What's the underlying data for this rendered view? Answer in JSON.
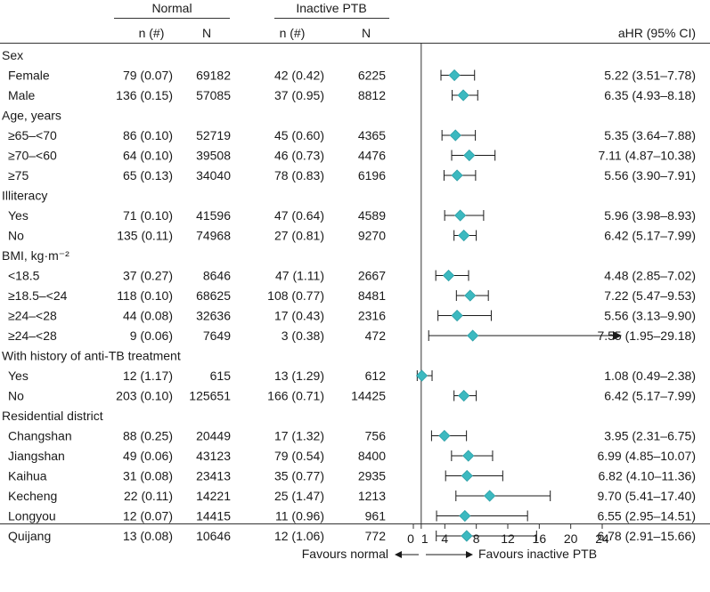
{
  "chart_data": {
    "type": "forest",
    "column_headers": {
      "group_normal": "Normal",
      "group_ptb": "Inactive PTB",
      "n_label": "n (#)",
      "N_label": "N",
      "estimate_label": "aHR (95% CI)"
    },
    "x_axis": {
      "ticks": [
        0,
        1,
        4,
        8,
        12,
        16,
        20,
        24
      ],
      "range": [
        0,
        24
      ],
      "reference_line": 1,
      "left_label": "Favours normal",
      "right_label": "Favours inactive PTB"
    },
    "groups": [
      {
        "title": "Sex",
        "rows": [
          {
            "label": "Female",
            "normal_n": "79 (0.07)",
            "normal_N": "69182",
            "ptb_n": "42 (0.42)",
            "ptb_N": "6225",
            "ahr": 5.22,
            "lo": 3.51,
            "hi": 7.78,
            "ci_text": "5.22 (3.51–7.78)"
          },
          {
            "label": "Male",
            "normal_n": "136 (0.15)",
            "normal_N": "57085",
            "ptb_n": "37 (0.95)",
            "ptb_N": "8812",
            "ahr": 6.35,
            "lo": 4.93,
            "hi": 8.18,
            "ci_text": "6.35 (4.93–8.18)"
          }
        ]
      },
      {
        "title": "Age, years",
        "rows": [
          {
            "label": "≥65–<70",
            "normal_n": "86 (0.10)",
            "normal_N": "52719",
            "ptb_n": "45 (0.60)",
            "ptb_N": "4365",
            "ahr": 5.35,
            "lo": 3.64,
            "hi": 7.88,
            "ci_text": "5.35 (3.64–7.88)"
          },
          {
            "label": "≥70–<60",
            "normal_n": "64 (0.10)",
            "normal_N": "39508",
            "ptb_n": "46 (0.73)",
            "ptb_N": "4476",
            "ahr": 7.11,
            "lo": 4.87,
            "hi": 10.38,
            "ci_text": "7.11 (4.87–10.38)"
          },
          {
            "label": "≥75",
            "normal_n": "65 (0.13)",
            "normal_N": "34040",
            "ptb_n": "78 (0.83)",
            "ptb_N": "6196",
            "ahr": 5.56,
            "lo": 3.9,
            "hi": 7.91,
            "ci_text": "5.56 (3.90–7.91)"
          }
        ]
      },
      {
        "title": "Illiteracy",
        "rows": [
          {
            "label": "Yes",
            "normal_n": "71 (0.10)",
            "normal_N": "41596",
            "ptb_n": "47 (0.64)",
            "ptb_N": "4589",
            "ahr": 5.96,
            "lo": 3.98,
            "hi": 8.93,
            "ci_text": "5.96 (3.98–8.93)"
          },
          {
            "label": "No",
            "normal_n": "135 (0.11)",
            "normal_N": "74968",
            "ptb_n": "27 (0.81)",
            "ptb_N": "9270",
            "ahr": 6.42,
            "lo": 5.17,
            "hi": 7.99,
            "ci_text": "6.42 (5.17–7.99)"
          }
        ]
      },
      {
        "title": "BMI, kg·m⁻²",
        "rows": [
          {
            "label": "<18.5",
            "normal_n": "37 (0.27)",
            "normal_N": "8646",
            "ptb_n": "47 (1.11)",
            "ptb_N": "2667",
            "ahr": 4.48,
            "lo": 2.85,
            "hi": 7.02,
            "ci_text": "4.48 (2.85–7.02)"
          },
          {
            "label": "≥18.5–<24",
            "normal_n": "118 (0.10)",
            "normal_N": "68625",
            "ptb_n": "108 (0.77)",
            "ptb_N": "8481",
            "ahr": 7.22,
            "lo": 5.47,
            "hi": 9.53,
            "ci_text": "7.22 (5.47–9.53)"
          },
          {
            "label": "≥24–<28",
            "normal_n": "44 (0.08)",
            "normal_N": "32636",
            "ptb_n": "17 (0.43)",
            "ptb_N": "2316",
            "ahr": 5.56,
            "lo": 3.13,
            "hi": 9.9,
            "ci_text": "5.56 (3.13–9.90)"
          },
          {
            "label": "≥24–<28",
            "normal_n": "9 (0.06)",
            "normal_N": "7649",
            "ptb_n": "3 (0.38)",
            "ptb_N": "472",
            "ahr": 7.55,
            "lo": 1.95,
            "hi": 29.18,
            "ci_text": "7.55 (1.95–29.18)",
            "arrow": true
          }
        ]
      },
      {
        "title": "With history of anti-TB treatment",
        "rows": [
          {
            "label": "Yes",
            "normal_n": "12 (1.17)",
            "normal_N": "615",
            "ptb_n": "13 (1.29)",
            "ptb_N": "612",
            "ahr": 1.08,
            "lo": 0.49,
            "hi": 2.38,
            "ci_text": "1.08 (0.49–2.38)"
          },
          {
            "label": "No",
            "normal_n": "203 (0.10)",
            "normal_N": "125651",
            "ptb_n": "166 (0.71)",
            "ptb_N": "14425",
            "ahr": 6.42,
            "lo": 5.17,
            "hi": 7.99,
            "ci_text": "6.42 (5.17–7.99)"
          }
        ]
      },
      {
        "title": "Residential district",
        "rows": [
          {
            "label": "Changshan",
            "normal_n": "88 (0.25)",
            "normal_N": "20449",
            "ptb_n": "17 (1.32)",
            "ptb_N": "756",
            "ahr": 3.95,
            "lo": 2.31,
            "hi": 6.75,
            "ci_text": "3.95 (2.31–6.75)"
          },
          {
            "label": "Jiangshan",
            "normal_n": "49 (0.06)",
            "normal_N": "43123",
            "ptb_n": "79 (0.54)",
            "ptb_N": "8400",
            "ahr": 6.99,
            "lo": 4.85,
            "hi": 10.07,
            "ci_text": "6.99 (4.85–10.07)"
          },
          {
            "label": "Kaihua",
            "normal_n": "31 (0.08)",
            "normal_N": "23413",
            "ptb_n": "35 (0.77)",
            "ptb_N": "2935",
            "ahr": 6.82,
            "lo": 4.1,
            "hi": 11.36,
            "ci_text": "6.82 (4.10–11.36)"
          },
          {
            "label": "Kecheng",
            "normal_n": "22 (0.11)",
            "normal_N": "14221",
            "ptb_n": "25 (1.47)",
            "ptb_N": "1213",
            "ahr": 9.7,
            "lo": 5.41,
            "hi": 17.4,
            "ci_text": "9.70 (5.41–17.40)"
          },
          {
            "label": "Longyou",
            "normal_n": "12 (0.07)",
            "normal_N": "14415",
            "ptb_n": "11 (0.96)",
            "ptb_N": "961",
            "ahr": 6.55,
            "lo": 2.95,
            "hi": 14.51,
            "ci_text": "6.55 (2.95–14.51)"
          },
          {
            "label": "Quijang",
            "normal_n": "13 (0.08)",
            "normal_N": "10646",
            "ptb_n": "12 (1.06)",
            "ptb_N": "772",
            "ahr": 6.78,
            "lo": 2.91,
            "hi": 15.66,
            "ci_text": "6.78 (2.91–15.66)"
          }
        ]
      }
    ]
  },
  "colors": {
    "marker": "#3cb9c0",
    "marker_edge": "#2a9ea5",
    "line": "#1a1a1a"
  }
}
